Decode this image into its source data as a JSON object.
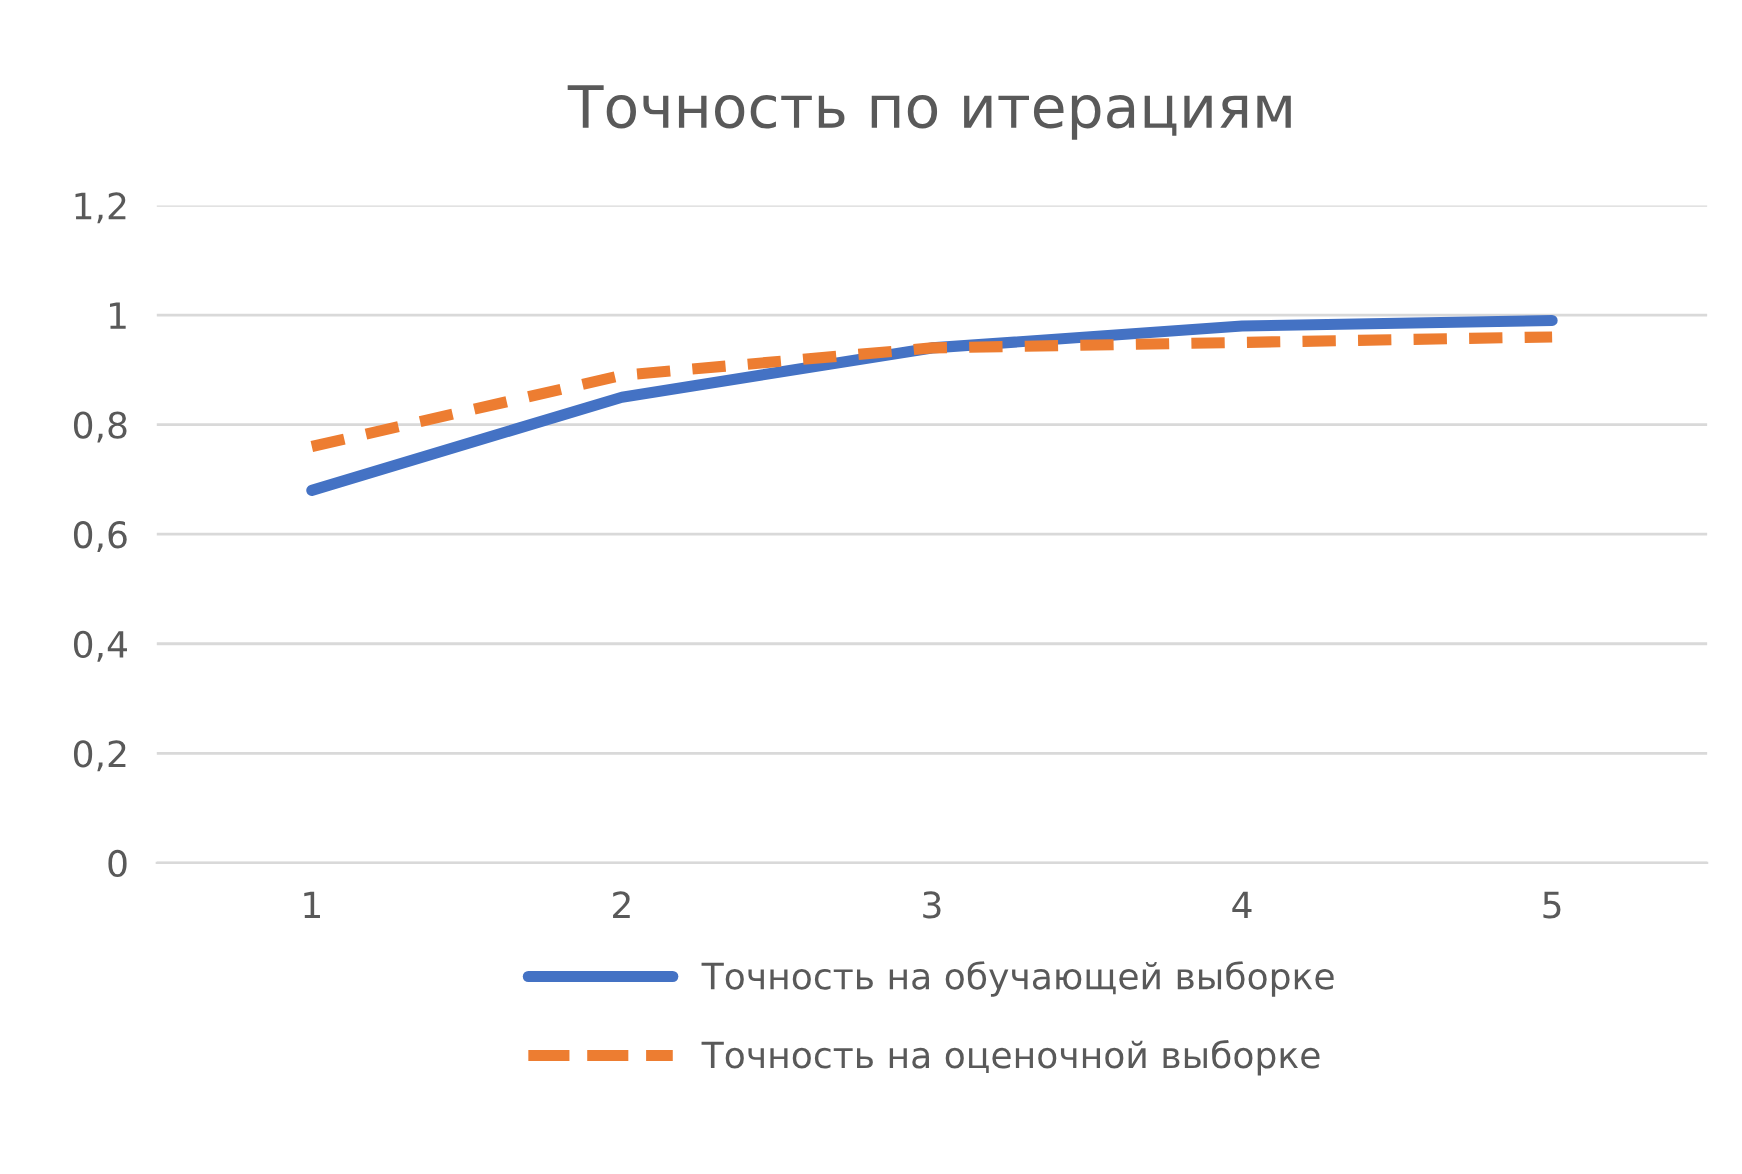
{
  "chart_data": {
    "type": "line",
    "title": "Точность по итерациям",
    "categories": [
      "1",
      "2",
      "3",
      "4",
      "5"
    ],
    "series": [
      {
        "name": "Точность на обучающей выборке",
        "color": "#4472c4",
        "values": [
          0.68,
          0.85,
          0.94,
          0.98,
          0.99
        ],
        "line_style": "solid"
      },
      {
        "name": "Точность на оценочной выборке",
        "color": "#ed7d31",
        "values": [
          0.76,
          0.89,
          0.94,
          0.95,
          0.96
        ],
        "line_style": "dashed"
      }
    ],
    "ylim": [
      0,
      1.2
    ],
    "yticks": [
      0,
      {
        "value": 0.2,
        "label": "0,2"
      },
      {
        "value": 0.4,
        "label": "0,4"
      },
      {
        "value": 0.6,
        "label": "0,6"
      },
      {
        "value": 0.8,
        "label": "0,8"
      },
      1,
      {
        "value": 1.2,
        "label": "1,2"
      }
    ],
    "grid": "y",
    "legend": "bottom",
    "marker": "none"
  }
}
